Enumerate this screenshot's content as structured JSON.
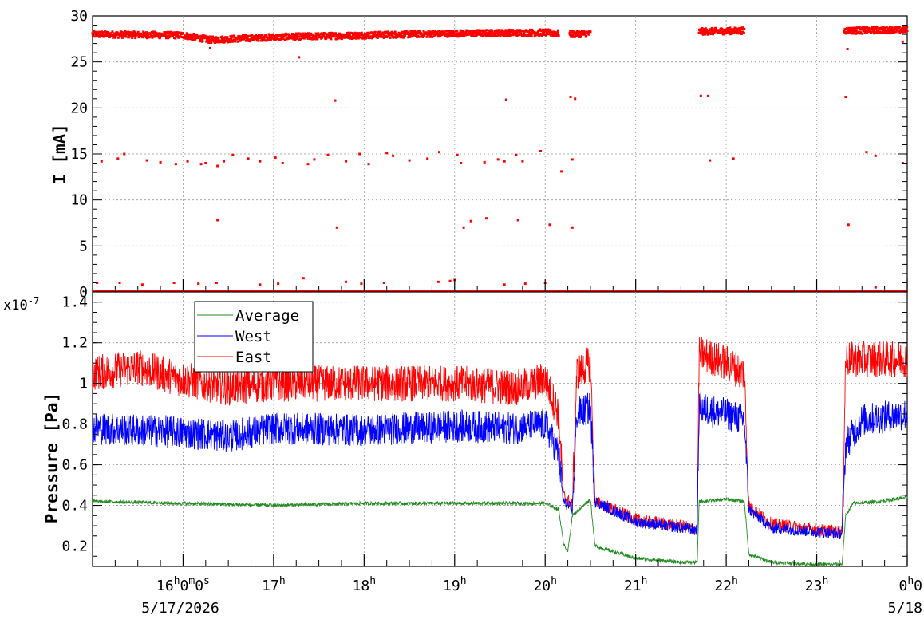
{
  "chart_data": [
    {
      "type": "scatter",
      "ylabel": "I [mA]",
      "ylim": [
        0,
        30
      ],
      "yticks": [
        "0",
        "5",
        "10",
        "15",
        "20",
        "25",
        "30"
      ],
      "grid": true,
      "x_range_hours": [
        15.0,
        24.0
      ],
      "gaps_hours": [
        [
          20.5,
          21.7
        ],
        [
          22.2,
          23.3
        ]
      ],
      "series": [
        {
          "color": "#ff0000",
          "main_band": [
            {
              "x": [
                15.0,
                16.0,
                16.3,
                17.0,
                18.0,
                19.0,
                20.0,
                20.15
              ],
              "y": [
                28.0,
                27.9,
                27.4,
                27.7,
                27.9,
                28.1,
                28.2,
                28.1
              ]
            },
            {
              "x": [
                20.27,
                20.5
              ],
              "y": [
                28.0,
                28.1
              ]
            },
            {
              "x": [
                21.7,
                22.2
              ],
              "y": [
                28.3,
                28.4
              ]
            },
            {
              "x": [
                23.3,
                24.0
              ],
              "y": [
                28.4,
                28.5
              ]
            }
          ],
          "baseline": {
            "x_start": 15.0,
            "x_end": 24.0,
            "y": 0.0
          },
          "outliers": [
            [
              15.1,
              14.2
            ],
            [
              15.28,
              14.5
            ],
            [
              15.35,
              15.0
            ],
            [
              15.6,
              14.3
            ],
            [
              15.75,
              14.1
            ],
            [
              15.92,
              13.9
            ],
            [
              16.05,
              14.2
            ],
            [
              16.2,
              13.9
            ],
            [
              16.25,
              14.0
            ],
            [
              16.38,
              13.7
            ],
            [
              16.45,
              14.2
            ],
            [
              16.55,
              14.9
            ],
            [
              16.72,
              14.5
            ],
            [
              16.85,
              14.2
            ],
            [
              17.02,
              14.6
            ],
            [
              17.1,
              14.0
            ],
            [
              17.38,
              13.9
            ],
            [
              17.45,
              14.4
            ],
            [
              17.6,
              14.9
            ],
            [
              17.8,
              14.2
            ],
            [
              17.95,
              15.0
            ],
            [
              18.05,
              13.9
            ],
            [
              18.25,
              15.1
            ],
            [
              18.32,
              14.8
            ],
            [
              18.5,
              14.3
            ],
            [
              18.7,
              14.5
            ],
            [
              18.83,
              15.2
            ],
            [
              19.03,
              14.9
            ],
            [
              19.07,
              14.0
            ],
            [
              19.33,
              14.1
            ],
            [
              19.48,
              14.4
            ],
            [
              19.55,
              14.2
            ],
            [
              19.68,
              14.9
            ],
            [
              19.75,
              14.2
            ],
            [
              19.95,
              15.3
            ],
            [
              20.18,
              13.1
            ],
            [
              20.3,
              14.4
            ],
            [
              21.82,
              14.3
            ],
            [
              22.08,
              14.5
            ],
            [
              23.55,
              15.2
            ],
            [
              23.65,
              14.8
            ],
            [
              23.95,
              14.0
            ],
            [
              16.38,
              7.8
            ],
            [
              17.7,
              7.0
            ],
            [
              19.1,
              7.0
            ],
            [
              19.18,
              7.7
            ],
            [
              19.35,
              8.0
            ],
            [
              19.7,
              7.8
            ],
            [
              20.05,
              7.3
            ],
            [
              20.3,
              7.0
            ],
            [
              23.35,
              7.3
            ],
            [
              17.68,
              20.8
            ],
            [
              19.57,
              20.9
            ],
            [
              20.28,
              21.2
            ],
            [
              20.33,
              21.0
            ],
            [
              21.72,
              21.3
            ],
            [
              21.8,
              21.3
            ],
            [
              23.32,
              21.2
            ],
            [
              17.28,
              25.5
            ],
            [
              16.3,
              26.5
            ],
            [
              23.34,
              26.4
            ],
            [
              23.95,
              27.2
            ],
            [
              15.05,
              1.0
            ],
            [
              15.3,
              1.0
            ],
            [
              15.55,
              0.8
            ],
            [
              15.9,
              1.0
            ],
            [
              16.17,
              0.9
            ],
            [
              16.37,
              1.0
            ],
            [
              16.85,
              0.8
            ],
            [
              17.05,
              0.9
            ],
            [
              17.33,
              1.5
            ],
            [
              17.8,
              1.1
            ],
            [
              17.97,
              0.9
            ],
            [
              18.22,
              1.0
            ],
            [
              18.82,
              1.1
            ],
            [
              18.95,
              1.2
            ],
            [
              19.0,
              1.3
            ],
            [
              19.55,
              0.8
            ],
            [
              19.78,
              0.9
            ],
            [
              20.0,
              1.0
            ],
            [
              23.65,
              0.5
            ]
          ]
        }
      ]
    },
    {
      "type": "line",
      "ylabel": "Pressure [Pa]",
      "exponent_label": "x10",
      "exponent_power": "-7",
      "ylim": [
        0.1,
        1.45
      ],
      "yticks": [
        "0.2",
        "0.4",
        "0.6",
        "0.8",
        "1",
        "1.2",
        "1.4"
      ],
      "grid": true,
      "x_range_hours": [
        15.0,
        24.0
      ],
      "xticks": [
        {
          "hour": 16,
          "label": "16",
          "sup1": "h",
          "mid": "0",
          "sup2": "m",
          "end": "0",
          "sup3": "s"
        },
        {
          "hour": 17,
          "label": "17",
          "sup1": "h"
        },
        {
          "hour": 18,
          "label": "18",
          "sup1": "h"
        },
        {
          "hour": 19,
          "label": "19",
          "sup1": "h"
        },
        {
          "hour": 20,
          "label": "20",
          "sup1": "h"
        },
        {
          "hour": 21,
          "label": "21",
          "sup1": "h"
        },
        {
          "hour": 22,
          "label": "22",
          "sup1": "h"
        },
        {
          "hour": 23,
          "label": "23",
          "sup1": "h"
        },
        {
          "hour": 24,
          "label": "0",
          "sup1": "h",
          "mid": "0"
        }
      ],
      "date_labels": {
        "start": "5/17/2026",
        "end": "5/18"
      },
      "legend": {
        "placement": "top-left"
      },
      "series": [
        {
          "name": "Average",
          "color": "#228b22",
          "x": [
            15.0,
            16.0,
            17.0,
            18.0,
            19.0,
            20.0,
            20.15,
            20.2,
            20.25,
            20.3,
            20.5,
            20.55,
            21.0,
            21.5,
            21.68,
            21.7,
            22.0,
            22.2,
            22.25,
            22.5,
            23.0,
            23.28,
            23.32,
            23.4,
            23.7,
            24.0
          ],
          "y": [
            0.42,
            0.41,
            0.4,
            0.41,
            0.41,
            0.41,
            0.38,
            0.22,
            0.17,
            0.35,
            0.43,
            0.2,
            0.14,
            0.12,
            0.12,
            0.42,
            0.43,
            0.42,
            0.16,
            0.12,
            0.11,
            0.11,
            0.35,
            0.41,
            0.42,
            0.44
          ],
          "noise": 0.025
        },
        {
          "name": "West",
          "color": "#0000ff",
          "x": [
            15.0,
            16.0,
            16.5,
            17.0,
            18.0,
            19.0,
            19.7,
            20.0,
            20.15,
            20.2,
            20.3,
            20.35,
            20.5,
            20.55,
            21.0,
            21.5,
            21.68,
            21.7,
            22.0,
            22.2,
            22.25,
            22.5,
            23.0,
            23.28,
            23.32,
            23.5,
            24.0
          ],
          "y": [
            0.78,
            0.76,
            0.74,
            0.78,
            0.77,
            0.79,
            0.78,
            0.8,
            0.65,
            0.42,
            0.38,
            0.85,
            0.88,
            0.42,
            0.32,
            0.29,
            0.28,
            0.88,
            0.85,
            0.82,
            0.38,
            0.29,
            0.27,
            0.26,
            0.7,
            0.82,
            0.85
          ],
          "noise": 0.08
        },
        {
          "name": "East",
          "color": "#ff0000",
          "x": [
            15.0,
            15.5,
            16.0,
            16.5,
            17.0,
            18.0,
            19.0,
            19.7,
            20.0,
            20.15,
            20.2,
            20.3,
            20.35,
            20.5,
            20.55,
            21.0,
            21.5,
            21.68,
            21.7,
            22.0,
            22.2,
            22.25,
            22.5,
            23.0,
            23.28,
            23.32,
            23.5,
            24.0
          ],
          "y": [
            1.05,
            1.08,
            1.02,
            0.98,
            1.0,
            1.0,
            1.0,
            0.98,
            1.02,
            0.85,
            0.45,
            0.4,
            1.05,
            1.1,
            0.42,
            0.33,
            0.3,
            0.28,
            1.15,
            1.1,
            1.05,
            0.4,
            0.31,
            0.28,
            0.27,
            1.12,
            1.12,
            1.12
          ],
          "noise": 0.09
        }
      ]
    }
  ]
}
